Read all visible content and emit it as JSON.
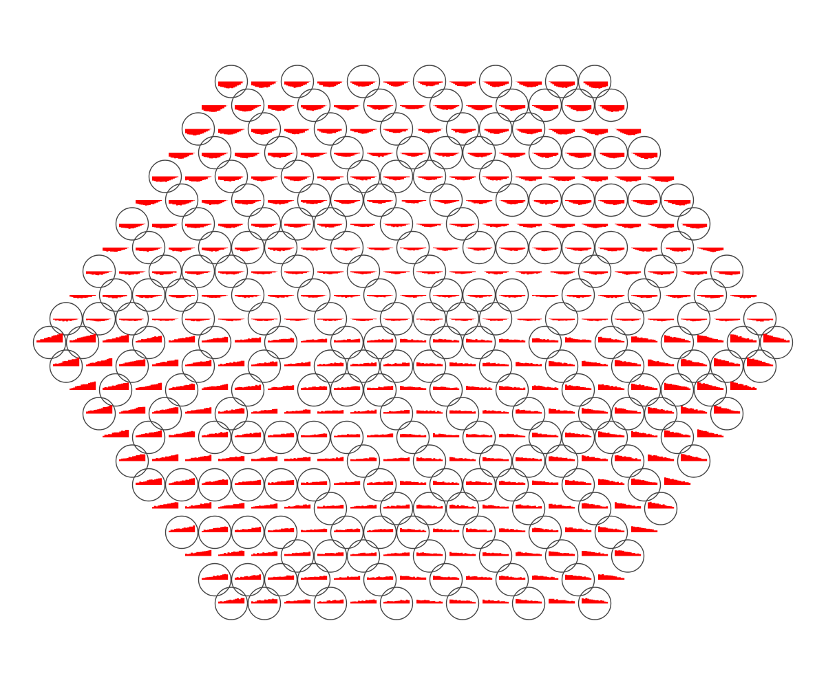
{
  "diagram": {
    "type": "hexagonal-grid-of-mini-bar-plots",
    "grid_rows": 23,
    "row_cell_counts": [
      12,
      13,
      14,
      15,
      16,
      17,
      18,
      19,
      20,
      21,
      22,
      23,
      22,
      21,
      20,
      19,
      18,
      17,
      16,
      15,
      14,
      13,
      12
    ],
    "total_cells": 397,
    "ring_outlines": "every-other-ring",
    "colors": {
      "background": "#ffffff",
      "circle_stroke": "#444444",
      "bar_fill": "#ff0000"
    },
    "labels": []
  }
}
